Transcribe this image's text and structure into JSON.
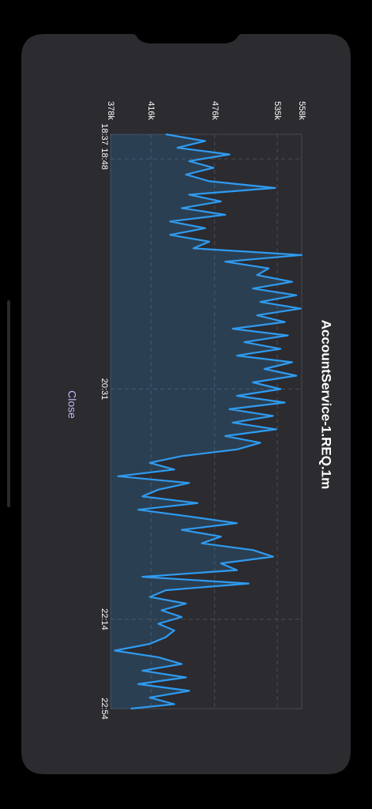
{
  "chart_data": {
    "type": "line",
    "title": "AccountService-1.REQ.1m",
    "x": [
      "18:37",
      "18:40",
      "18:43",
      "18:46",
      "18:49",
      "18:52",
      "18:55",
      "18:58",
      "19:01",
      "19:04",
      "19:07",
      "19:10",
      "19:13",
      "19:16",
      "19:19",
      "19:22",
      "19:25",
      "19:28",
      "19:31",
      "19:34",
      "19:37",
      "19:40",
      "19:43",
      "19:46",
      "19:49",
      "19:52",
      "19:55",
      "19:58",
      "20:01",
      "20:04",
      "20:07",
      "20:10",
      "20:13",
      "20:16",
      "20:19",
      "20:22",
      "20:25",
      "20:28",
      "20:31",
      "20:34",
      "20:37",
      "20:40",
      "20:43",
      "20:46",
      "20:49",
      "20:52",
      "20:55",
      "20:58",
      "21:01",
      "21:04",
      "21:07",
      "21:10",
      "21:13",
      "21:16",
      "21:19",
      "21:22",
      "21:25",
      "21:28",
      "21:31",
      "21:34",
      "21:37",
      "21:40",
      "21:43",
      "21:46",
      "21:49",
      "21:52",
      "21:55",
      "21:58",
      "22:01",
      "22:04",
      "22:07",
      "22:10",
      "22:13",
      "22:16",
      "22:19",
      "22:22",
      "22:25",
      "22:28",
      "22:31",
      "22:34",
      "22:37",
      "22:40",
      "22:43",
      "22:46",
      "22:49",
      "22:52",
      "22:54"
    ],
    "series": [
      {
        "name": "AccountService-1.REQ.1m",
        "color": "#2f9bf0",
        "values": [
          430000,
          467000,
          441000,
          490000,
          452000,
          475000,
          449000,
          471000,
          533000,
          452000,
          482000,
          445000,
          486000,
          434000,
          467000,
          434000,
          471000,
          456000,
          558000,
          486000,
          527000,
          516000,
          549000,
          512000,
          553000,
          519000,
          557000,
          516000,
          542000,
          493000,
          545000,
          504000,
          538000,
          497000,
          549000,
          523000,
          553000,
          512000,
          538000,
          497000,
          542000,
          490000,
          531000,
          493000,
          534000,
          486000,
          519000,
          497000,
          445000,
          415000,
          438000,
          385000,
          452000,
          423000,
          408000,
          460000,
          404000,
          452000,
          497000,
          445000,
          482000,
          464000,
          512000,
          531000,
          482000,
          497000,
          408000,
          508000,
          430000,
          415000,
          449000,
          426000,
          445000,
          423000,
          438000,
          430000,
          415000,
          382000,
          423000,
          445000,
          408000,
          449000,
          404000,
          452000,
          415000,
          438000,
          397000
        ]
      }
    ],
    "xlim": [
      "18:37",
      "22:54"
    ],
    "xticks": [
      "18:37",
      "18:48",
      "20:31",
      "22:14",
      "22:54"
    ],
    "ylim": [
      378000,
      558000
    ],
    "yticks": [
      {
        "value": 378000,
        "label": "378k"
      },
      {
        "value": 416000,
        "label": "416k"
      },
      {
        "value": 476000,
        "label": "476k"
      },
      {
        "value": 535000,
        "label": "535k"
      },
      {
        "value": 558000,
        "label": "558k"
      }
    ],
    "grid": true
  },
  "close_button": "Close"
}
